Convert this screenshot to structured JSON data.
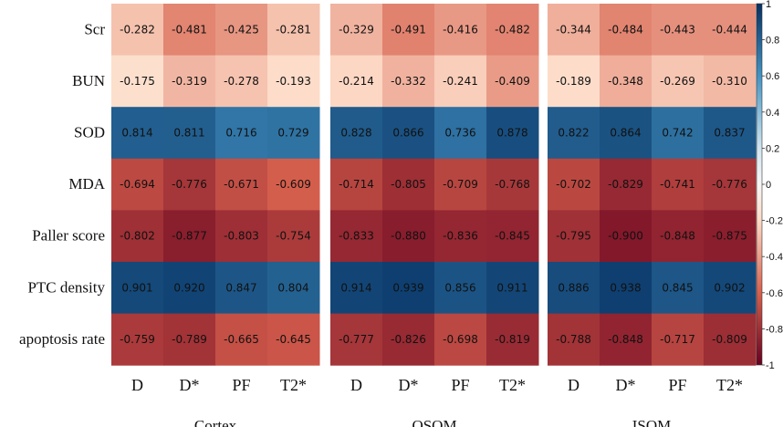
{
  "chart_data": {
    "type": "heatmap",
    "title": "",
    "rows": [
      "Scr",
      "BUN",
      "SOD",
      "MDA",
      "Paller score",
      "PTC density",
      "apoptosis rate"
    ],
    "columns": [
      "D",
      "D*",
      "PF",
      "T2*"
    ],
    "panels": [
      {
        "name": "Cortex",
        "values": [
          [
            -0.282,
            -0.481,
            -0.425,
            -0.281
          ],
          [
            -0.175,
            -0.319,
            -0.278,
            -0.193
          ],
          [
            0.814,
            0.811,
            0.716,
            0.729
          ],
          [
            -0.694,
            -0.776,
            -0.671,
            -0.609
          ],
          [
            -0.802,
            -0.877,
            -0.803,
            -0.754
          ],
          [
            0.901,
            0.92,
            0.847,
            0.804
          ],
          [
            -0.759,
            -0.789,
            -0.665,
            -0.645
          ]
        ]
      },
      {
        "name": "OSOM",
        "values": [
          [
            -0.329,
            -0.491,
            -0.416,
            -0.482
          ],
          [
            -0.214,
            -0.332,
            -0.241,
            -0.409
          ],
          [
            0.828,
            0.866,
            0.736,
            0.878
          ],
          [
            -0.714,
            -0.805,
            -0.709,
            -0.768
          ],
          [
            -0.833,
            -0.88,
            -0.836,
            -0.845
          ],
          [
            0.914,
            0.939,
            0.856,
            0.911
          ],
          [
            -0.777,
            -0.826,
            -0.698,
            -0.819
          ]
        ]
      },
      {
        "name": "ISOM",
        "values": [
          [
            -0.344,
            -0.484,
            -0.443,
            -0.444
          ],
          [
            -0.189,
            -0.348,
            -0.269,
            -0.31
          ],
          [
            0.822,
            0.864,
            0.742,
            0.837
          ],
          [
            -0.702,
            -0.829,
            -0.741,
            -0.776
          ],
          [
            -0.795,
            -0.9,
            -0.848,
            -0.875
          ],
          [
            0.886,
            0.938,
            0.845,
            0.902
          ],
          [
            -0.788,
            -0.848,
            -0.717,
            -0.809
          ]
        ]
      }
    ],
    "colorbar": {
      "range": [
        -1,
        1
      ],
      "ticks": [
        1,
        0.8,
        0.6,
        0.4,
        0.2,
        0,
        -0.2,
        -0.4,
        -0.6,
        -0.8,
        -1
      ],
      "tick_labels": [
        "1",
        "0.8",
        "0.6",
        "0.4",
        "0.2",
        "0",
        "-0.2",
        "-0.4",
        "-0.6",
        "-0.8",
        "-1"
      ]
    },
    "colors": {
      "neg_strong": "#67001f",
      "neg_mid": "#d6604d",
      "neg_light": "#fddbc7",
      "neutral": "#f7f7f7",
      "pos_light": "#d1e5f0",
      "pos_mid": "#4393c3",
      "pos_strong": "#053061"
    }
  }
}
